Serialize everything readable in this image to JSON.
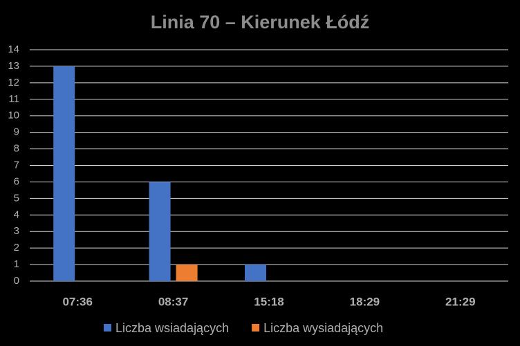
{
  "chart_data": {
    "type": "bar",
    "title": "Linia 70 – Kierunek Łódź",
    "categories": [
      "07:36",
      "08:37",
      "15:18",
      "18:29",
      "21:29"
    ],
    "series": [
      {
        "name": "Liczba wsiadających",
        "color": "#4472c4",
        "values": [
          13,
          6,
          1,
          0,
          0
        ]
      },
      {
        "name": "Liczba wysiadających",
        "color": "#ed7d31",
        "values": [
          0,
          1,
          0,
          0,
          0
        ]
      }
    ],
    "ylim": [
      0,
      14
    ],
    "yticks": [
      0,
      1,
      2,
      3,
      4,
      5,
      6,
      7,
      8,
      9,
      10,
      11,
      12,
      13,
      14
    ],
    "grid": true
  }
}
